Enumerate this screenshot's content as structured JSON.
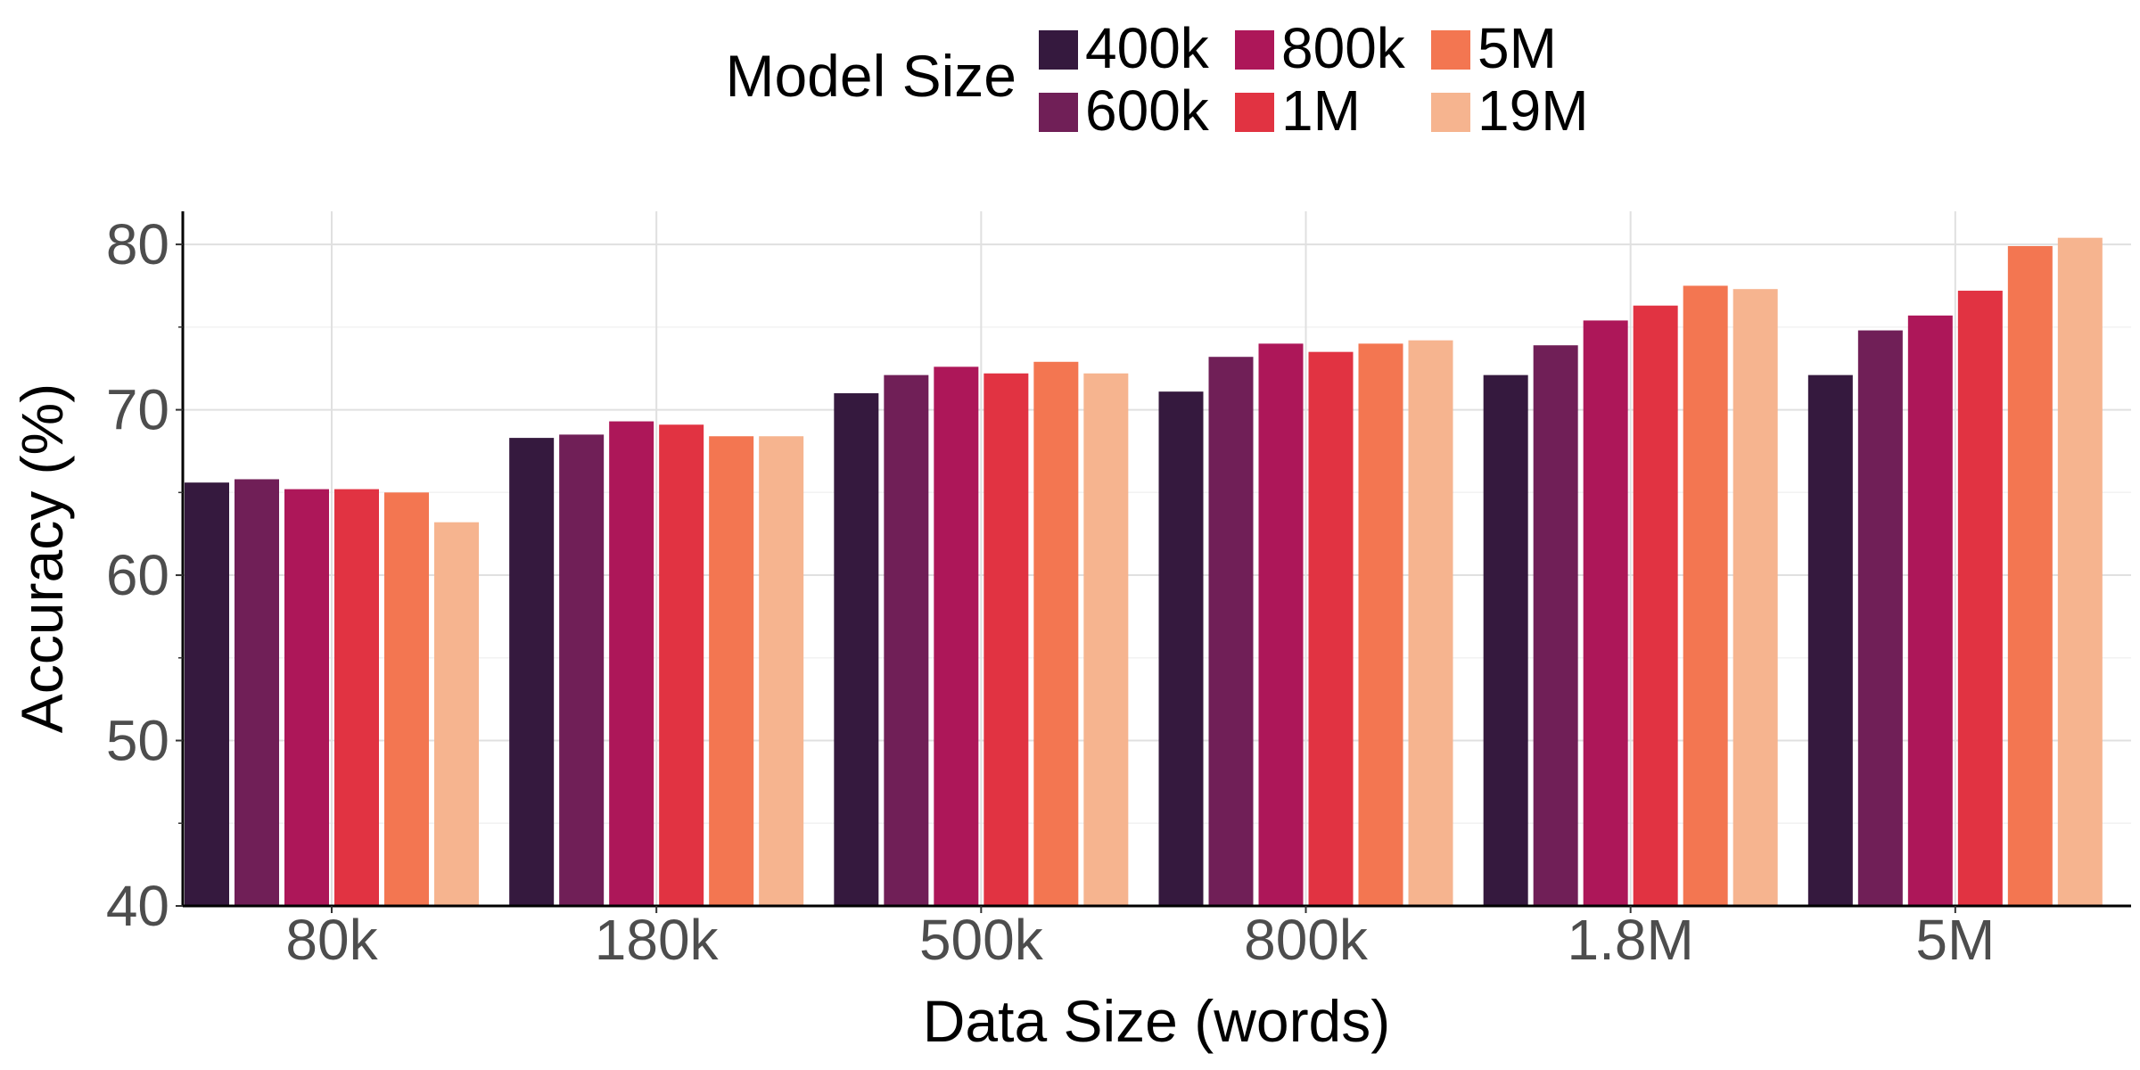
{
  "chart_data": {
    "type": "bar",
    "title": "",
    "xlabel": "Data Size (words)",
    "ylabel": "Accuracy (%)",
    "ylim": [
      40,
      82
    ],
    "yticks": [
      40,
      50,
      60,
      70,
      80
    ],
    "grid": true,
    "legend": {
      "title": "Model Size",
      "placement": "top"
    },
    "categories": [
      "80k",
      "180k",
      "500k",
      "800k",
      "1.8M",
      "5M"
    ],
    "series": [
      {
        "name": "400k",
        "color": "#35193e",
        "values": [
          65.6,
          68.3,
          71.0,
          71.1,
          72.1,
          72.1
        ]
      },
      {
        "name": "600k",
        "color": "#701f57",
        "values": [
          65.8,
          68.5,
          72.1,
          73.2,
          73.9,
          74.8
        ]
      },
      {
        "name": "800k",
        "color": "#ad1759",
        "values": [
          65.2,
          69.3,
          72.6,
          74.0,
          75.4,
          75.7
        ]
      },
      {
        "name": "1M",
        "color": "#e13342",
        "values": [
          65.2,
          69.1,
          72.2,
          73.5,
          76.3,
          77.2
        ]
      },
      {
        "name": "5M",
        "color": "#f37651",
        "values": [
          65.0,
          68.4,
          72.9,
          74.0,
          77.5,
          79.9
        ]
      },
      {
        "name": "19M",
        "color": "#f6b48f",
        "values": [
          63.2,
          68.4,
          72.2,
          74.2,
          77.3,
          80.4
        ]
      }
    ]
  }
}
